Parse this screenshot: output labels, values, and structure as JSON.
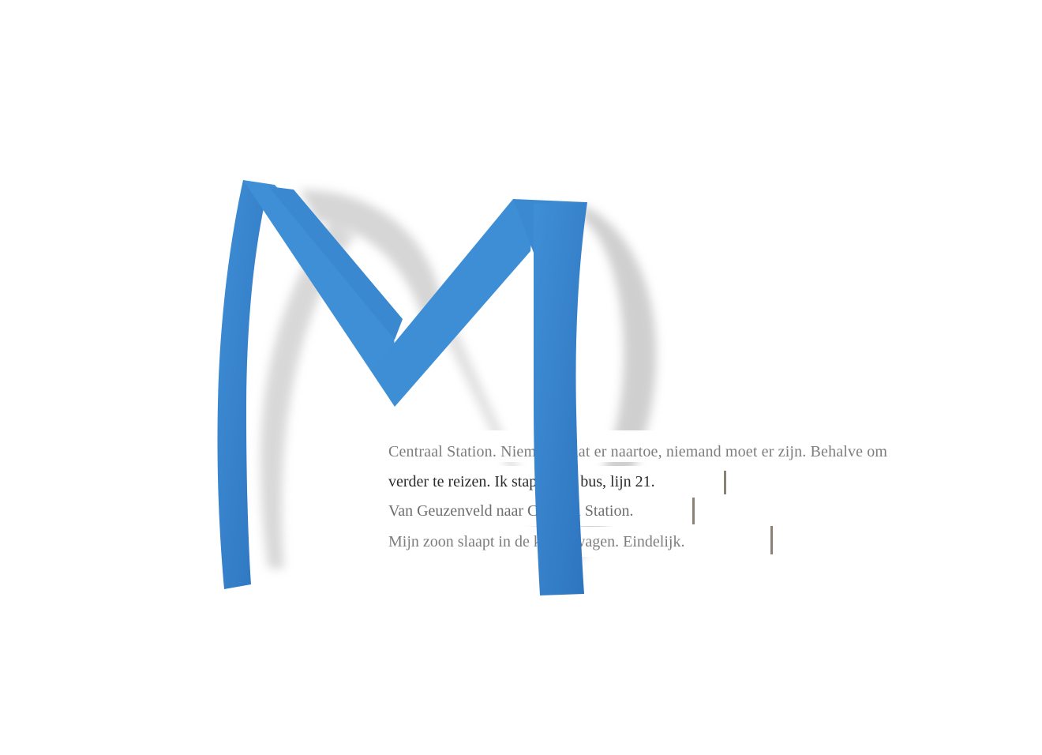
{
  "artwork": {
    "subject": "paper cut-out letter over printed text strips",
    "colors": {
      "letter_blue": "#3f8fd6",
      "letter_blue_dark": "#2e74bf",
      "shadow": "#c9c9c9",
      "text_gray": "#7d7d7d",
      "text_dark": "#2b2b2b",
      "background": "#ffffff"
    }
  },
  "text_strips": {
    "line1": "Centraal Station. Niemand gaat er naartoe, niemand moet er zijn. Behalve om",
    "line2": "verder te reizen. Ik stap uit de bus, lijn 21.",
    "line3": "Van Geuzenveld naar Centraal Station.",
    "line4": "Mijn zoon slaapt in de kinderwagen. Eindelijk."
  }
}
